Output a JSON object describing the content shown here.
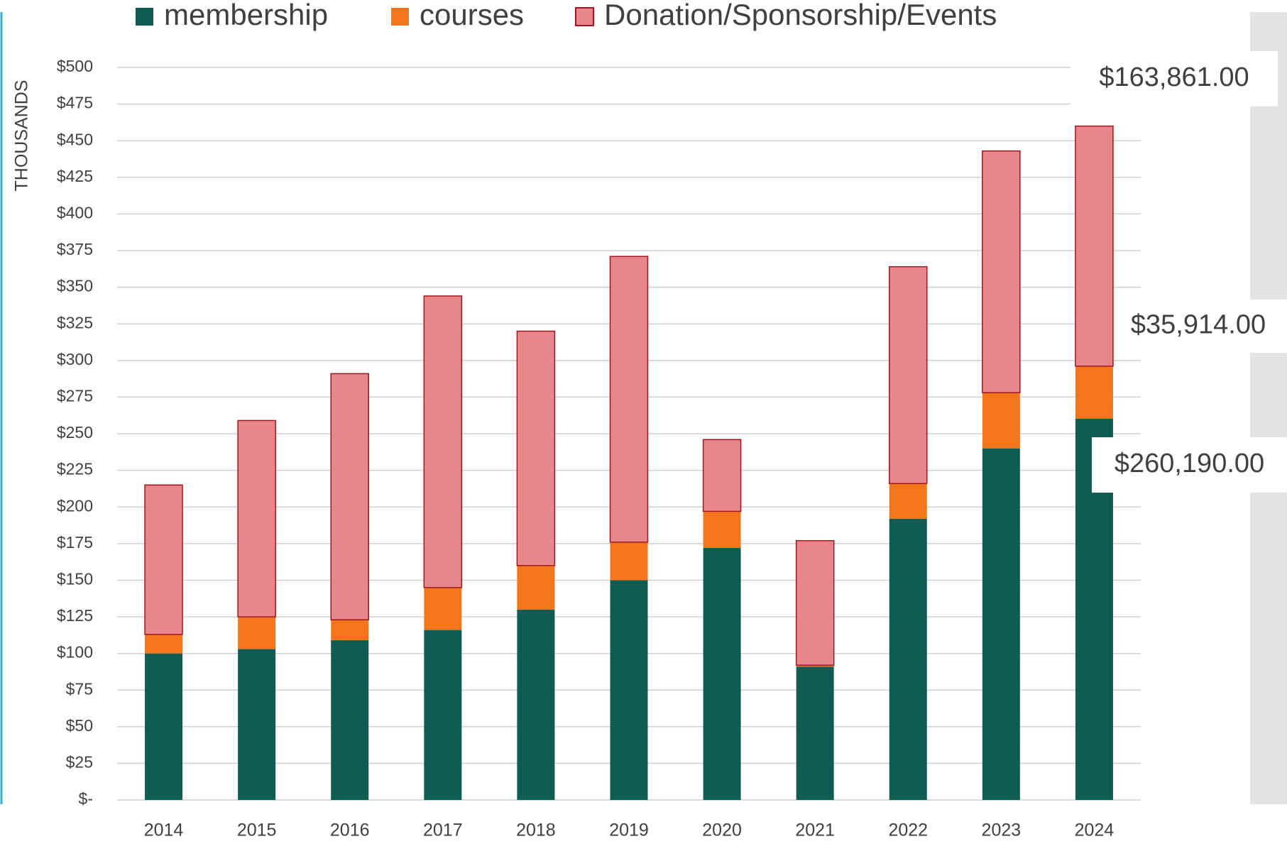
{
  "chart_data": {
    "type": "stacked_bar",
    "y_axis_label": "THOUSANDS",
    "categories": [
      "2014",
      "2015",
      "2016",
      "2017",
      "2018",
      "2019",
      "2020",
      "2021",
      "2022",
      "2023",
      "2024"
    ],
    "series": [
      {
        "name": "membership",
        "color": "#0e5c52",
        "values": [
          100,
          103,
          109,
          116,
          130,
          150,
          172,
          91,
          192,
          240,
          260.19
        ],
        "value_labels": [
          null,
          null,
          null,
          null,
          null,
          null,
          null,
          null,
          null,
          null,
          "$260,190.00"
        ]
      },
      {
        "name": "courses",
        "color": "#f4761c",
        "values": [
          13,
          22,
          14,
          29,
          30,
          26,
          25,
          1,
          24,
          38,
          35.914
        ],
        "value_labels": [
          null,
          null,
          null,
          null,
          null,
          null,
          null,
          null,
          null,
          null,
          "$35,914.00"
        ]
      },
      {
        "name": "Donation/Sponsorship/Events",
        "color": "#e8878b",
        "edge_color": "#a0161e",
        "values": [
          102,
          134,
          168,
          199,
          160,
          195,
          49,
          85,
          148,
          165,
          163.861
        ],
        "value_labels": [
          null,
          null,
          null,
          null,
          null,
          null,
          null,
          null,
          null,
          null,
          "$163,861.00"
        ]
      }
    ],
    "ylim": [
      0,
      500
    ],
    "yticks": [
      {
        "value": 0,
        "label": "$-"
      },
      {
        "value": 25,
        "label": "$25"
      },
      {
        "value": 50,
        "label": "$50"
      },
      {
        "value": 75,
        "label": "$75"
      },
      {
        "value": 100,
        "label": "$100"
      },
      {
        "value": 125,
        "label": "$125"
      },
      {
        "value": 150,
        "label": "$150"
      },
      {
        "value": 175,
        "label": "$175"
      },
      {
        "value": 200,
        "label": "$200"
      },
      {
        "value": 225,
        "label": "$225"
      },
      {
        "value": 250,
        "label": "$250"
      },
      {
        "value": 275,
        "label": "$275"
      },
      {
        "value": 300,
        "label": "$300"
      },
      {
        "value": 325,
        "label": "$325"
      },
      {
        "value": 350,
        "label": "$350"
      },
      {
        "value": 375,
        "label": "$375"
      },
      {
        "value": 400,
        "label": "$400"
      },
      {
        "value": 425,
        "label": "$425"
      },
      {
        "value": 450,
        "label": "$450"
      },
      {
        "value": 475,
        "label": "$475"
      },
      {
        "value": 500,
        "label": "$500"
      }
    ],
    "grid": true,
    "legend": "top"
  }
}
